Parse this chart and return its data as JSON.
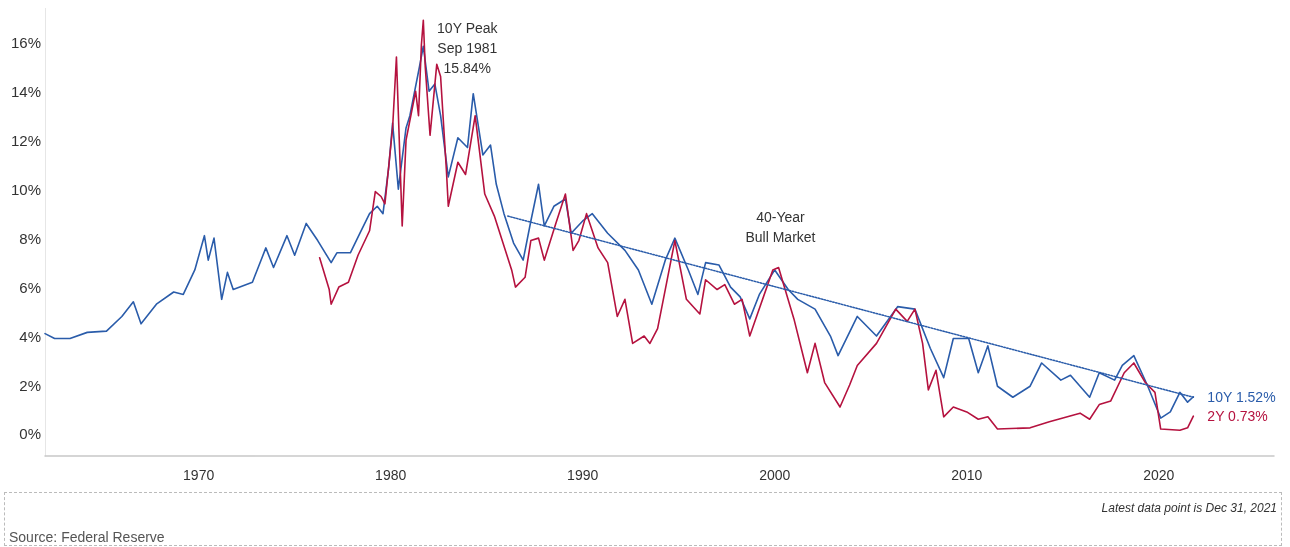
{
  "chart_data": {
    "type": "line",
    "xlim": [
      1962,
      2026
    ],
    "xticks": [
      1970,
      1980,
      1990,
      2000,
      2010,
      2020
    ],
    "ylim": [
      -0.9,
      17.4
    ],
    "yticks": [
      {
        "value": 0,
        "label": "0%"
      },
      {
        "value": 2,
        "label": "2%"
      },
      {
        "value": 4,
        "label": "4%"
      },
      {
        "value": 6,
        "label": "6%"
      },
      {
        "value": 8,
        "label": "8%"
      },
      {
        "value": 10,
        "label": "10%"
      },
      {
        "value": 12,
        "label": "12%"
      },
      {
        "value": 14,
        "label": "14%"
      },
      {
        "value": 16,
        "label": "16%"
      }
    ],
    "grid": false,
    "legend": false,
    "marker": "none",
    "series": [
      {
        "name": "10Y 1.52%",
        "color": "#2a5caa",
        "line_style": "solid",
        "x": [
          1962.0,
          1962.5,
          1963.3,
          1964.2,
          1965.2,
          1966.0,
          1966.6,
          1967.0,
          1967.8,
          1968.7,
          1969.2,
          1969.8,
          1970.3,
          1970.5,
          1970.8,
          1971.2,
          1971.5,
          1971.8,
          1972.8,
          1973.5,
          1973.9,
          1974.6,
          1975.0,
          1975.6,
          1976.2,
          1976.9,
          1977.2,
          1977.9,
          1978.4,
          1978.9,
          1979.3,
          1979.6,
          1979.9,
          1980.1,
          1980.4,
          1980.8,
          1981.0,
          1981.5,
          1981.7,
          1982.0,
          1982.3,
          1982.6,
          1983.0,
          1983.5,
          1984.0,
          1984.3,
          1984.8,
          1985.2,
          1985.5,
          1985.9,
          1986.4,
          1986.9,
          1987.3,
          1987.7,
          1988.0,
          1988.5,
          1989.1,
          1989.4,
          1990.0,
          1990.5,
          1991.3,
          1992.2,
          1992.9,
          1993.6,
          1994.3,
          1994.8,
          1995.5,
          1996.0,
          1996.4,
          1997.1,
          1997.7,
          1998.2,
          1998.7,
          1999.2,
          2000.0,
          2000.7,
          2001.2,
          2002.1,
          2002.9,
          2003.3,
          2004.3,
          2005.3,
          2006.4,
          2007.3,
          2008.1,
          2008.8,
          2009.3,
          2010.1,
          2010.6,
          2011.1,
          2011.6,
          2012.4,
          2013.3,
          2013.9,
          2014.9,
          2015.4,
          2016.4,
          2016.9,
          2017.7,
          2018.1,
          2018.7,
          2019.4,
          2020.1,
          2020.6,
          2021.1,
          2021.5,
          2021.8
        ],
        "values": [
          4.1,
          3.9,
          3.9,
          4.15,
          4.2,
          4.8,
          5.4,
          4.5,
          5.3,
          5.8,
          5.7,
          6.7,
          8.1,
          7.1,
          8.0,
          5.5,
          6.6,
          5.9,
          6.2,
          7.6,
          6.8,
          8.1,
          7.3,
          8.6,
          7.9,
          7.0,
          7.4,
          7.4,
          8.2,
          9.0,
          9.3,
          9.0,
          10.9,
          12.7,
          10.0,
          12.5,
          13.0,
          15.0,
          15.84,
          14.0,
          14.3,
          13.0,
          10.5,
          12.1,
          11.7,
          13.9,
          11.4,
          11.8,
          10.2,
          9.0,
          7.8,
          7.1,
          8.7,
          10.2,
          8.5,
          9.3,
          9.6,
          8.2,
          8.7,
          9.0,
          8.2,
          7.5,
          6.7,
          5.3,
          7.1,
          8.0,
          6.7,
          5.7,
          7.0,
          6.9,
          6.0,
          5.6,
          4.7,
          5.7,
          6.7,
          5.9,
          5.5,
          5.1,
          4.0,
          3.2,
          4.8,
          4.0,
          5.2,
          5.1,
          3.5,
          2.3,
          3.9,
          3.9,
          2.5,
          3.6,
          1.95,
          1.5,
          1.95,
          2.9,
          2.2,
          2.4,
          1.5,
          2.5,
          2.2,
          2.8,
          3.2,
          2.0,
          0.65,
          0.9,
          1.7,
          1.3,
          1.52
        ]
      },
      {
        "name": "2Y 0.73%",
        "color": "#b5123f",
        "line_style": "solid",
        "x": [
          1976.3,
          1976.8,
          1976.9,
          1977.3,
          1977.8,
          1978.3,
          1978.9,
          1979.2,
          1979.5,
          1979.7,
          1980.1,
          1980.3,
          1980.6,
          1980.8,
          1981.3,
          1981.45,
          1981.6,
          1981.7,
          1981.8,
          1982.05,
          1982.4,
          1982.6,
          1982.9,
          1983.0,
          1983.5,
          1983.9,
          1984.4,
          1984.9,
          1985.4,
          1986.3,
          1986.5,
          1987.0,
          1987.3,
          1987.7,
          1988.0,
          1988.6,
          1989.1,
          1989.5,
          1989.8,
          1990.2,
          1990.8,
          1991.3,
          1991.8,
          1992.2,
          1992.6,
          1993.2,
          1993.5,
          1993.9,
          1994.3,
          1994.8,
          1995.4,
          1996.1,
          1996.4,
          1997.0,
          1997.4,
          1997.9,
          1998.3,
          1998.7,
          1999.1,
          1999.9,
          2000.2,
          2001.0,
          2001.7,
          2002.1,
          2002.6,
          2003.4,
          2003.9,
          2004.3,
          2005.3,
          2006.3,
          2006.9,
          2007.3,
          2007.7,
          2008.0,
          2008.4,
          2008.8,
          2009.3,
          2010.0,
          2010.6,
          2011.1,
          2011.6,
          2013.3,
          2014.3,
          2015.9,
          2016.4,
          2016.9,
          2017.5,
          2018.2,
          2018.7,
          2019.3,
          2019.8,
          2020.1,
          2021.1,
          2021.5,
          2021.8
        ],
        "values": [
          7.2,
          5.9,
          5.3,
          6.0,
          6.2,
          7.3,
          8.3,
          9.9,
          9.7,
          9.4,
          12.5,
          15.4,
          8.5,
          12.0,
          14.0,
          13.0,
          15.9,
          16.9,
          15.0,
          12.2,
          15.1,
          14.6,
          10.8,
          9.3,
          11.1,
          10.6,
          13.0,
          9.8,
          8.9,
          6.7,
          6.0,
          6.4,
          7.9,
          8.0,
          7.1,
          8.6,
          9.8,
          7.5,
          7.9,
          9.0,
          7.6,
          7.0,
          4.8,
          5.5,
          3.7,
          4.0,
          3.7,
          4.3,
          5.9,
          7.9,
          5.5,
          4.9,
          6.3,
          5.9,
          6.1,
          5.3,
          5.5,
          4.0,
          4.9,
          6.7,
          6.8,
          4.7,
          2.5,
          3.7,
          2.1,
          1.1,
          2.0,
          2.8,
          3.7,
          5.1,
          4.6,
          5.1,
          3.7,
          1.8,
          2.6,
          0.7,
          1.1,
          0.9,
          0.6,
          0.7,
          0.2,
          0.25,
          0.5,
          0.85,
          0.6,
          1.2,
          1.35,
          2.5,
          2.9,
          2.1,
          1.7,
          0.2,
          0.15,
          0.25,
          0.73
        ]
      },
      {
        "type": "line",
        "color": "#2a5caa",
        "line_style": "dotted",
        "x": [
          1986.1,
          2021.8
        ],
        "values": [
          8.9,
          1.5
        ]
      }
    ],
    "annotations": [
      {
        "text": "10Y Peak\nSep 1981\n15.84%",
        "x": 1981.7,
        "y": 15.84
      },
      "40-Year\nBull Market",
      "Latest data point is Dec 31, 2021",
      "Source: Federal Reserve"
    ]
  }
}
